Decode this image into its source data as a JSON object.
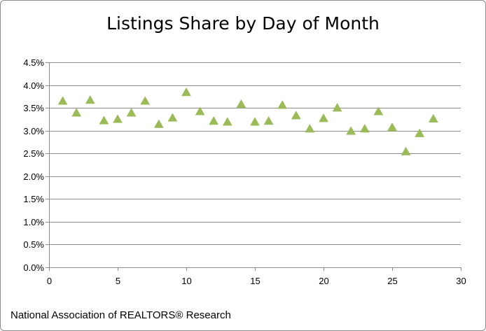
{
  "chart_data": {
    "type": "scatter",
    "title": "Listings Share by Day of Month",
    "xlabel": "",
    "ylabel": "",
    "xlim": [
      0,
      30
    ],
    "ylim": [
      0.0,
      4.5
    ],
    "x_ticks": [
      0,
      5,
      10,
      15,
      20,
      25,
      30
    ],
    "y_ticks": [
      0.0,
      0.5,
      1.0,
      1.5,
      2.0,
      2.5,
      3.0,
      3.5,
      4.0,
      4.5
    ],
    "y_tick_labels": [
      "0.0%",
      "0.5%",
      "1.0%",
      "1.5%",
      "2.0%",
      "2.5%",
      "3.0%",
      "3.5%",
      "4.0%",
      "4.5%"
    ],
    "grid": "horizontal",
    "legend": "none",
    "marker": "triangle",
    "marker_color": "#9bbb59",
    "series": [
      {
        "x": [
          1,
          2,
          3,
          4,
          5,
          6,
          7,
          8,
          9,
          10,
          11,
          12,
          13,
          14,
          15,
          16,
          17,
          18,
          19,
          20,
          21,
          22,
          23,
          24,
          25,
          26,
          27,
          28
        ],
        "y": [
          3.65,
          3.39,
          3.67,
          3.22,
          3.25,
          3.39,
          3.65,
          3.14,
          3.28,
          3.84,
          3.42,
          3.21,
          3.19,
          3.58,
          3.19,
          3.21,
          3.56,
          3.33,
          3.04,
          3.27,
          3.5,
          2.99,
          3.04,
          3.42,
          3.07,
          2.54,
          2.94,
          3.26
        ]
      }
    ]
  },
  "footer": "National Association of REALTORS®  Research"
}
